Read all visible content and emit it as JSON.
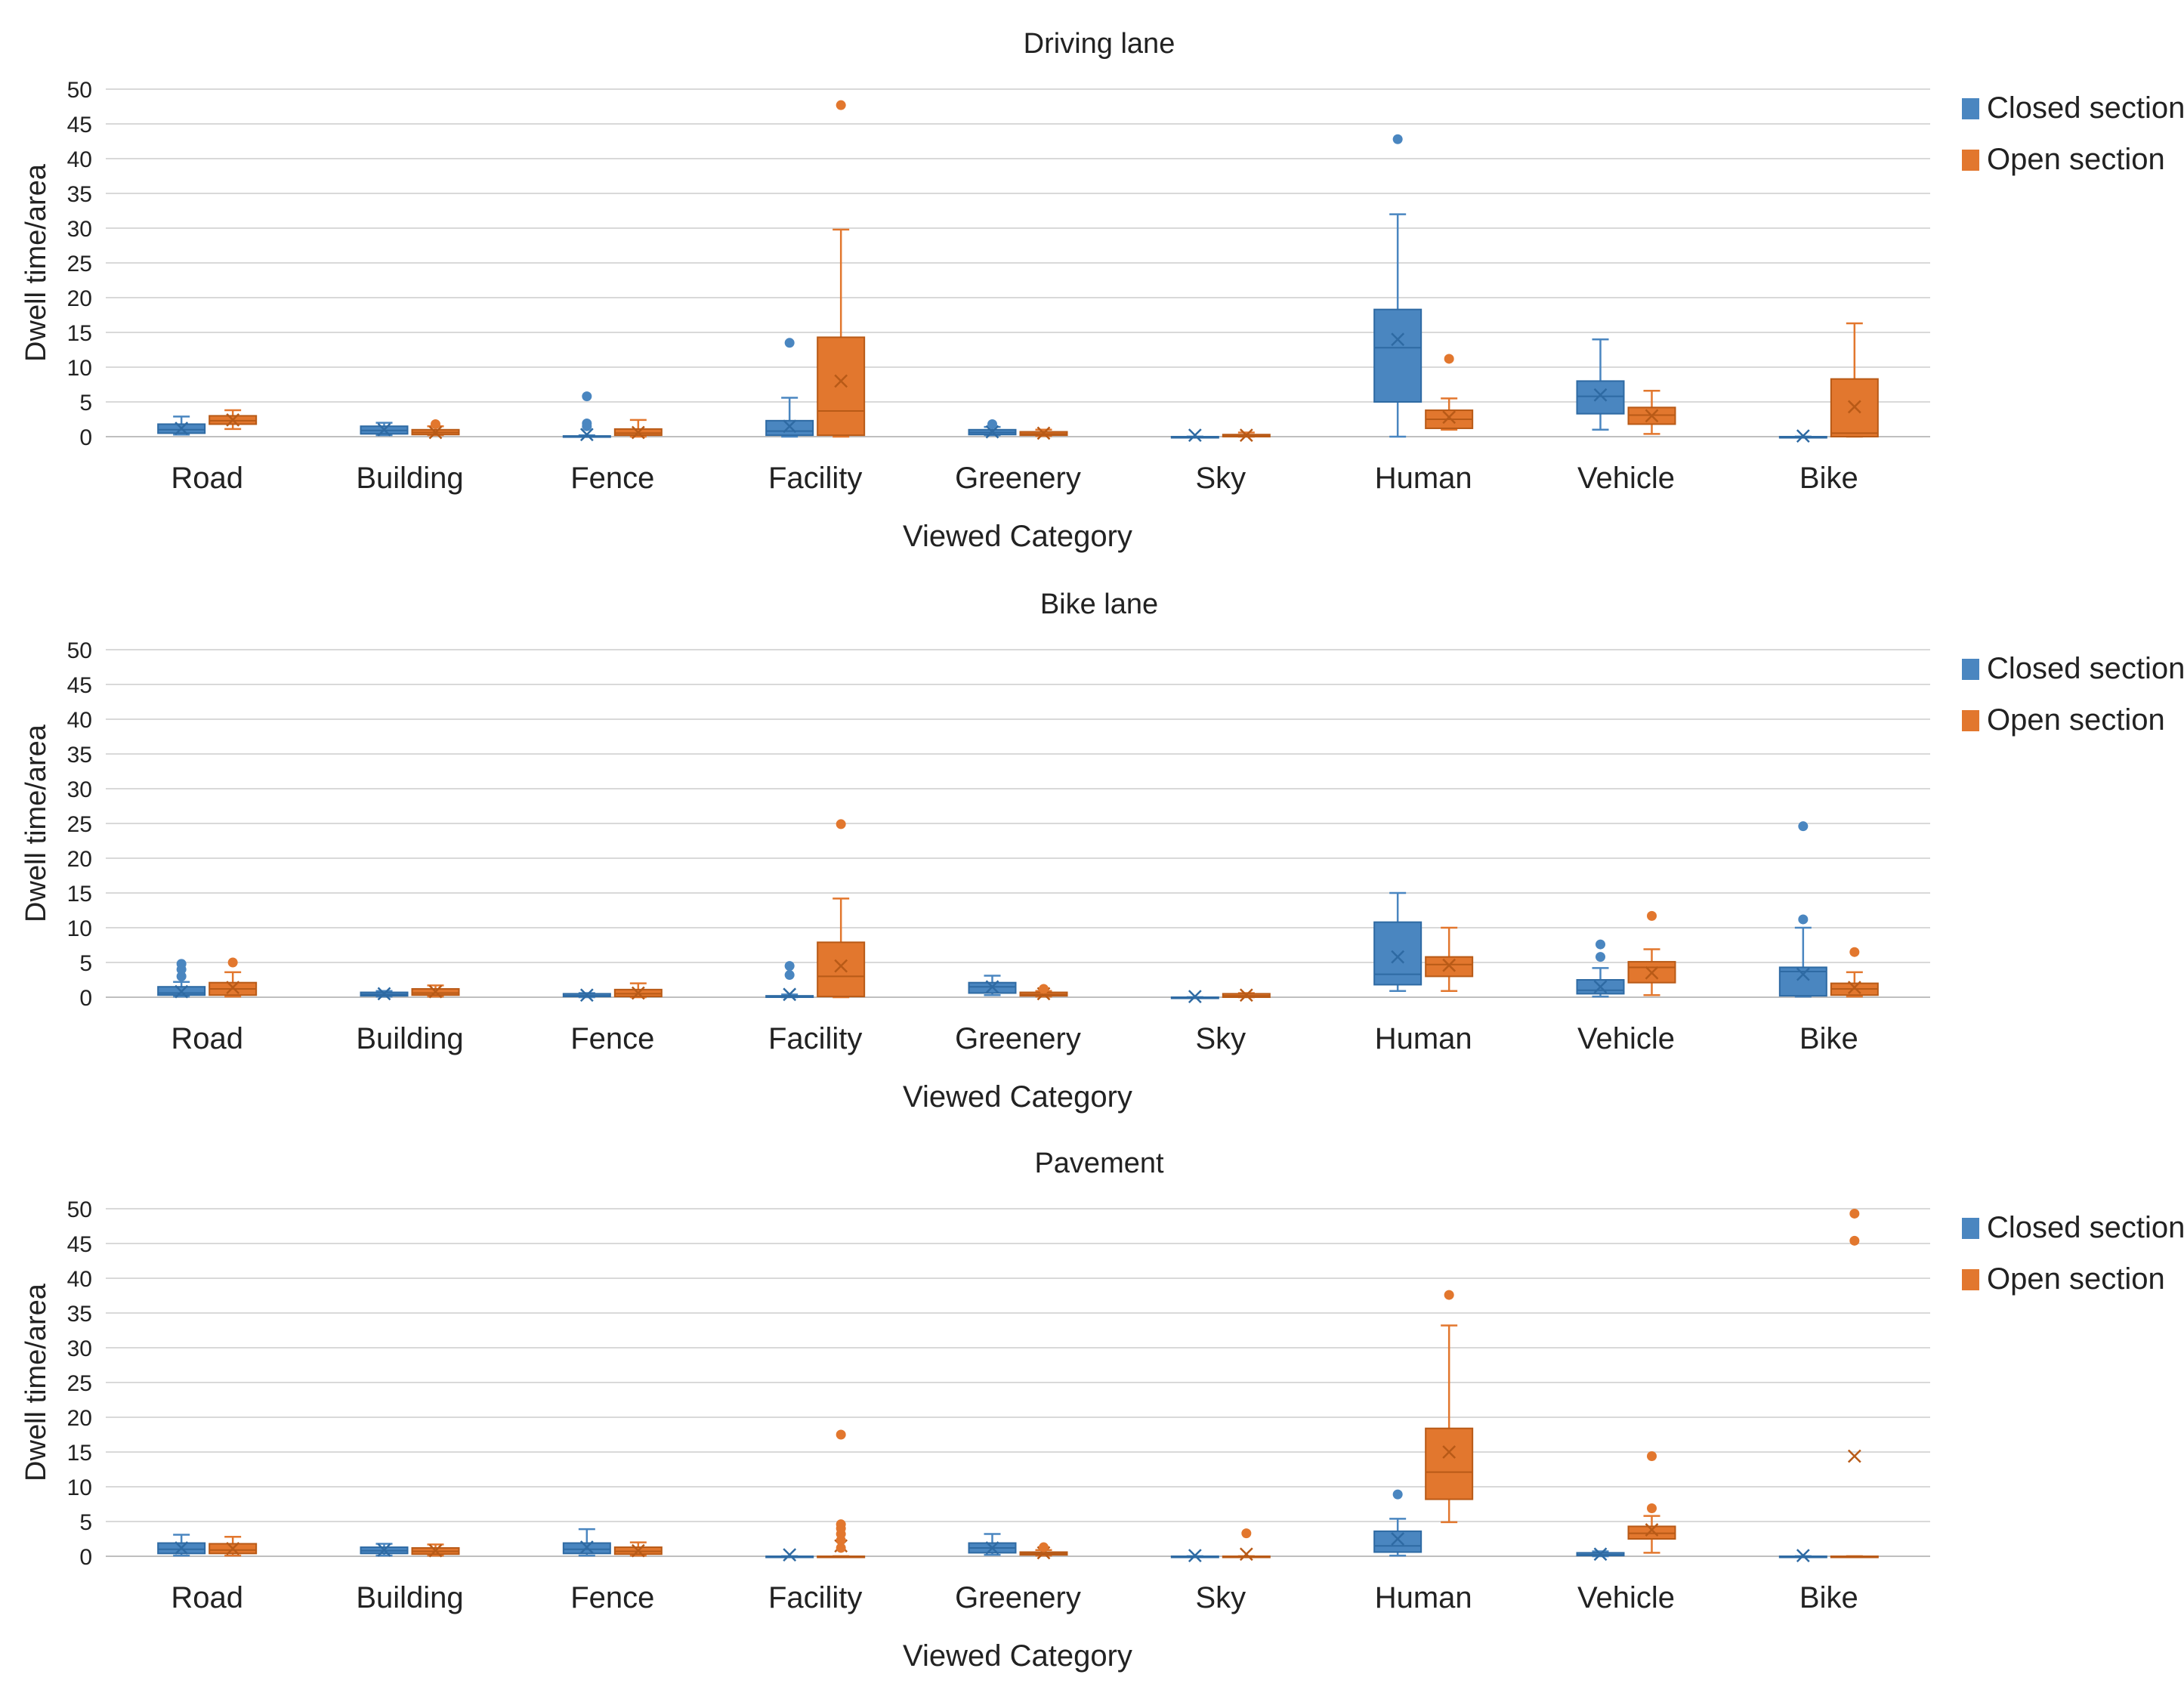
{
  "colors": {
    "closed": "#4a86c0",
    "closed_dark": "#2e6aa3",
    "open": "#e2772e",
    "open_dark": "#b85a17",
    "grid": "#d9d9d9",
    "axis": "#bfbfbf"
  },
  "chart_data": [
    {
      "type": "box",
      "title": "Driving lane",
      "xlabel": "Viewed Category",
      "ylabel": "Dwell time/area",
      "ylim": [
        0,
        50
      ],
      "yticks": [
        "0",
        "5",
        "10",
        "15",
        "20",
        "25",
        "30",
        "35",
        "40",
        "45",
        "50"
      ],
      "legend_position": "right",
      "categories": [
        "Road",
        "Building",
        "Fence",
        "Facility",
        "Greenery",
        "Sky",
        "Human",
        "Vehicle",
        "Bike"
      ],
      "series": [
        {
          "name": "Closed section",
          "boxes": [
            {
              "min": 0.3,
              "q1": 0.5,
              "median": 1.0,
              "q3": 1.8,
              "max": 2.9,
              "mean": 1.2,
              "outliers": []
            },
            {
              "min": 0.2,
              "q1": 0.4,
              "median": 0.9,
              "q3": 1.5,
              "max": 2.0,
              "mean": 1.0,
              "outliers": []
            },
            {
              "min": 0,
              "q1": 0,
              "median": 0,
              "q3": 0.1,
              "max": 0.2,
              "mean": 0.3,
              "outliers": [
                1.5,
                1.9,
                5.8
              ]
            },
            {
              "min": 0,
              "q1": 0.2,
              "median": 0.8,
              "q3": 2.3,
              "max": 5.6,
              "mean": 1.5,
              "outliers": [
                13.5
              ]
            },
            {
              "min": 0.2,
              "q1": 0.3,
              "median": 0.6,
              "q3": 1.0,
              "max": 1.4,
              "mean": 0.7,
              "outliers": [
                1.8
              ]
            },
            {
              "min": 0,
              "q1": 0,
              "median": 0,
              "q3": 0,
              "max": 0,
              "mean": 0.2,
              "outliers": []
            },
            {
              "min": 0,
              "q1": 5.0,
              "median": 12.8,
              "q3": 18.3,
              "max": 32.0,
              "mean": 14.0,
              "outliers": [
                42.8
              ]
            },
            {
              "min": 1.0,
              "q1": 3.3,
              "median": 5.8,
              "q3": 8.0,
              "max": 14.0,
              "mean": 6.0,
              "outliers": []
            },
            {
              "min": 0,
              "q1": 0,
              "median": 0,
              "q3": 0,
              "max": 0,
              "mean": 0.1,
              "outliers": []
            }
          ]
        },
        {
          "name": "Open section",
          "boxes": [
            {
              "min": 1.1,
              "q1": 1.8,
              "median": 2.3,
              "q3": 3.0,
              "max": 3.8,
              "mean": 2.4,
              "outliers": []
            },
            {
              "min": 0.2,
              "q1": 0.3,
              "median": 0.6,
              "q3": 1.0,
              "max": 1.5,
              "mean": 0.6,
              "outliers": [
                1.8
              ]
            },
            {
              "min": 0,
              "q1": 0.2,
              "median": 0.5,
              "q3": 1.1,
              "max": 2.4,
              "mean": 0.6,
              "outliers": []
            },
            {
              "min": 0,
              "q1": 0.2,
              "median": 3.7,
              "q3": 14.3,
              "max": 29.8,
              "mean": 8.0,
              "outliers": [
                47.7
              ]
            },
            {
              "min": 0.1,
              "q1": 0.2,
              "median": 0.4,
              "q3": 0.7,
              "max": 1.0,
              "mean": 0.5,
              "outliers": []
            },
            {
              "min": 0,
              "q1": 0,
              "median": 0.1,
              "q3": 0.3,
              "max": 0.6,
              "mean": 0.2,
              "outliers": []
            },
            {
              "min": 1.0,
              "q1": 1.2,
              "median": 2.5,
              "q3": 3.8,
              "max": 5.5,
              "mean": 2.8,
              "outliers": [
                11.2
              ]
            },
            {
              "min": 0.4,
              "q1": 1.8,
              "median": 3.1,
              "q3": 4.2,
              "max": 6.6,
              "mean": 3.0,
              "outliers": []
            },
            {
              "min": 0,
              "q1": 0,
              "median": 0.5,
              "q3": 8.3,
              "max": 16.3,
              "mean": 4.3,
              "outliers": []
            }
          ]
        }
      ]
    },
    {
      "type": "box",
      "title": "Bike lane",
      "xlabel": "Viewed Category",
      "ylabel": "Dwell time/area",
      "ylim": [
        0,
        50
      ],
      "yticks": [
        "0",
        "5",
        "10",
        "15",
        "20",
        "25",
        "30",
        "35",
        "40",
        "45",
        "50"
      ],
      "legend_position": "right",
      "categories": [
        "Road",
        "Building",
        "Fence",
        "Facility",
        "Greenery",
        "Sky",
        "Human",
        "Vehicle",
        "Bike"
      ],
      "series": [
        {
          "name": "Closed section",
          "boxes": [
            {
              "min": 0.1,
              "q1": 0.3,
              "median": 0.6,
              "q3": 1.5,
              "max": 2.2,
              "mean": 0.8,
              "outliers": [
                3.0,
                4.0,
                4.8
              ]
            },
            {
              "min": 0.1,
              "q1": 0.2,
              "median": 0.4,
              "q3": 0.7,
              "max": 0.9,
              "mean": 0.5,
              "outliers": []
            },
            {
              "min": 0,
              "q1": 0.1,
              "median": 0.2,
              "q3": 0.5,
              "max": 0.6,
              "mean": 0.3,
              "outliers": []
            },
            {
              "min": 0,
              "q1": 0,
              "median": 0,
              "q3": 0.2,
              "max": 0.4,
              "mean": 0.4,
              "outliers": [
                3.2,
                4.5
              ]
            },
            {
              "min": 0.3,
              "q1": 0.6,
              "median": 1.5,
              "q3": 2.1,
              "max": 3.1,
              "mean": 1.5,
              "outliers": []
            },
            {
              "min": 0,
              "q1": 0,
              "median": 0,
              "q3": 0,
              "max": 0,
              "mean": 0.1,
              "outliers": []
            },
            {
              "min": 0.9,
              "q1": 1.8,
              "median": 3.3,
              "q3": 10.8,
              "max": 15.0,
              "mean": 5.8,
              "outliers": []
            },
            {
              "min": 0.1,
              "q1": 0.5,
              "median": 1.0,
              "q3": 2.5,
              "max": 4.2,
              "mean": 1.5,
              "outliers": [
                5.8,
                7.6
              ]
            },
            {
              "min": 0.1,
              "q1": 0.2,
              "median": 3.7,
              "q3": 4.3,
              "max": 10.0,
              "mean": 3.3,
              "outliers": [
                11.2,
                24.6
              ]
            }
          ]
        },
        {
          "name": "Open section",
          "boxes": [
            {
              "min": 0.1,
              "q1": 0.3,
              "median": 1.2,
              "q3": 2.1,
              "max": 3.6,
              "mean": 1.4,
              "outliers": [
                5.0
              ]
            },
            {
              "min": 0.1,
              "q1": 0.3,
              "median": 0.6,
              "q3": 1.2,
              "max": 1.7,
              "mean": 0.8,
              "outliers": []
            },
            {
              "min": 0,
              "q1": 0.1,
              "median": 0.5,
              "q3": 1.1,
              "max": 2.0,
              "mean": 0.6,
              "outliers": []
            },
            {
              "min": 0,
              "q1": 0.1,
              "median": 3.0,
              "q3": 7.9,
              "max": 14.2,
              "mean": 4.5,
              "outliers": [
                24.9
              ]
            },
            {
              "min": 0.1,
              "q1": 0.2,
              "median": 0.4,
              "q3": 0.7,
              "max": 0.9,
              "mean": 0.5,
              "outliers": [
                1.2
              ]
            },
            {
              "min": 0,
              "q1": 0,
              "median": 0.2,
              "q3": 0.5,
              "max": 0.6,
              "mean": 0.3,
              "outliers": []
            },
            {
              "min": 0.9,
              "q1": 3.0,
              "median": 4.7,
              "q3": 5.8,
              "max": 10.0,
              "mean": 4.6,
              "outliers": []
            },
            {
              "min": 0.3,
              "q1": 2.1,
              "median": 4.3,
              "q3": 5.1,
              "max": 6.9,
              "mean": 3.5,
              "outliers": [
                11.7
              ]
            },
            {
              "min": 0.1,
              "q1": 0.3,
              "median": 1.2,
              "q3": 2.0,
              "max": 3.6,
              "mean": 1.4,
              "outliers": [
                6.5
              ]
            }
          ]
        }
      ]
    },
    {
      "type": "box",
      "title": "Pavement",
      "xlabel": "Viewed Category",
      "ylabel": "Dwell time/area",
      "ylim": [
        0,
        50
      ],
      "yticks": [
        "0",
        "5",
        "10",
        "15",
        "20",
        "25",
        "30",
        "35",
        "40",
        "45",
        "50"
      ],
      "legend_position": "right",
      "categories": [
        "Road",
        "Building",
        "Fence",
        "Facility",
        "Greenery",
        "Sky",
        "Human",
        "Vehicle",
        "Bike"
      ],
      "series": [
        {
          "name": "Closed section",
          "boxes": [
            {
              "min": 0.1,
              "q1": 0.4,
              "median": 1.0,
              "q3": 1.9,
              "max": 3.1,
              "mean": 1.2,
              "outliers": []
            },
            {
              "min": 0.1,
              "q1": 0.4,
              "median": 0.8,
              "q3": 1.3,
              "max": 1.8,
              "mean": 0.9,
              "outliers": []
            },
            {
              "min": 0.1,
              "q1": 0.4,
              "median": 1.0,
              "q3": 1.9,
              "max": 3.9,
              "mean": 1.3,
              "outliers": []
            },
            {
              "min": 0,
              "q1": 0,
              "median": 0,
              "q3": 0,
              "max": 0,
              "mean": 0.2,
              "outliers": []
            },
            {
              "min": 0.2,
              "q1": 0.5,
              "median": 1.2,
              "q3": 1.9,
              "max": 3.2,
              "mean": 1.2,
              "outliers": []
            },
            {
              "min": 0,
              "q1": 0,
              "median": 0,
              "q3": 0,
              "max": 0,
              "mean": 0.1,
              "outliers": []
            },
            {
              "min": 0.1,
              "q1": 0.6,
              "median": 1.5,
              "q3": 3.6,
              "max": 5.4,
              "mean": 2.5,
              "outliers": [
                8.9
              ]
            },
            {
              "min": 0,
              "q1": 0.1,
              "median": 0.2,
              "q3": 0.5,
              "max": 0.7,
              "mean": 0.3,
              "outliers": []
            },
            {
              "min": 0,
              "q1": 0,
              "median": 0,
              "q3": 0,
              "max": 0,
              "mean": 0.1,
              "outliers": []
            }
          ]
        },
        {
          "name": "Open section",
          "boxes": [
            {
              "min": 0.1,
              "q1": 0.4,
              "median": 0.9,
              "q3": 1.8,
              "max": 2.8,
              "mean": 1.1,
              "outliers": []
            },
            {
              "min": 0.1,
              "q1": 0.3,
              "median": 0.7,
              "q3": 1.2,
              "max": 1.7,
              "mean": 0.8,
              "outliers": []
            },
            {
              "min": 0.1,
              "q1": 0.3,
              "median": 0.7,
              "q3": 1.3,
              "max": 2.0,
              "mean": 0.8,
              "outliers": []
            },
            {
              "min": 0,
              "q1": 0,
              "median": 0,
              "q3": 0,
              "max": 0,
              "mean": 1.5,
              "outliers": [
                1.2,
                2.3,
                3.2,
                4.0,
                4.6,
                17.5
              ]
            },
            {
              "min": 0.1,
              "q1": 0.2,
              "median": 0.4,
              "q3": 0.6,
              "max": 0.9,
              "mean": 0.5,
              "outliers": [
                1.3
              ]
            },
            {
              "min": 0,
              "q1": 0,
              "median": 0,
              "q3": 0,
              "max": 0,
              "mean": 0.3,
              "outliers": [
                3.3
              ]
            },
            {
              "min": 4.9,
              "q1": 8.2,
              "median": 12.1,
              "q3": 18.4,
              "max": 33.2,
              "mean": 15.0,
              "outliers": [
                37.6
              ]
            },
            {
              "min": 0.5,
              "q1": 2.5,
              "median": 3.3,
              "q3": 4.3,
              "max": 5.8,
              "mean": 3.8,
              "outliers": [
                6.9,
                14.4
              ]
            },
            {
              "min": 0,
              "q1": 0,
              "median": 0,
              "q3": 0,
              "max": 0,
              "mean": 14.4,
              "outliers": [
                45.4,
                49.3
              ]
            }
          ]
        }
      ]
    }
  ]
}
